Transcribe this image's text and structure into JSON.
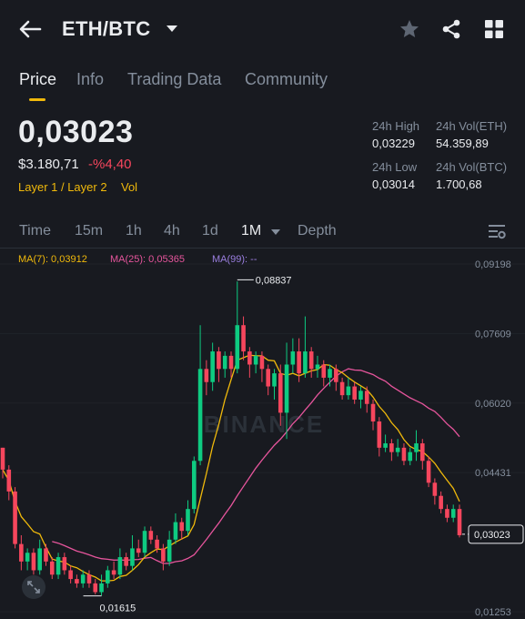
{
  "header": {
    "pair": "ETH/BTC",
    "icons": {
      "back": "arrow-left-icon",
      "favorite": "star-icon",
      "share": "share-icon",
      "more": "grid-icon"
    }
  },
  "tabs": [
    {
      "label": "Price",
      "active": true
    },
    {
      "label": "Info",
      "active": false
    },
    {
      "label": "Trading Data",
      "active": false
    },
    {
      "label": "Community",
      "active": false
    }
  ],
  "ticker": {
    "last_price": "0,03023",
    "usd_price": "$3.180,71",
    "change": "-%4,40",
    "tags": [
      "Layer 1 / Layer 2",
      "Vol"
    ],
    "high_label": "24h High",
    "high": "0,03229",
    "low_label": "24h Low",
    "low": "0,03014",
    "vol_eth_label": "24h Vol(ETH)",
    "vol_eth": "54.359,89",
    "vol_btc_label": "24h Vol(BTC)",
    "vol_btc": "1.700,68"
  },
  "timeframes": {
    "items": [
      "Time",
      "15m",
      "1h",
      "4h",
      "1d",
      "1M",
      "Depth"
    ],
    "active": "1M"
  },
  "indicators": {
    "ma7": "MA(7): 0,03912",
    "ma25": "MA(25): 0,05365",
    "ma99": "MA(99): --"
  },
  "colors": {
    "background": "#181a20",
    "up": "#0ecb81",
    "down": "#f6465d",
    "accent": "#f0b90b",
    "ma7": "#f0b90b",
    "ma25": "#e6559c",
    "ma99": "#9b7fe0"
  },
  "chart_data": {
    "type": "candlestick",
    "watermark": "BINANCE",
    "y_ticks": [
      "0,09198",
      "0,07609",
      "0,06020",
      "0,04431",
      "0,03023",
      "0,01253"
    ],
    "ylim": [
      0.01253,
      0.09198
    ],
    "high_marker": {
      "value": 0.08837,
      "label": "0,08837"
    },
    "low_marker": {
      "value": 0.01615,
      "label": "0,01615"
    },
    "last_price_marker": {
      "value": 0.03023,
      "label": "0,03023"
    },
    "candles": [
      [
        0.05,
        0.045,
        0.05,
        0.043
      ],
      [
        0.045,
        0.04,
        0.046,
        0.038
      ],
      [
        0.04,
        0.028,
        0.041,
        0.027
      ],
      [
        0.028,
        0.024,
        0.03,
        0.022
      ],
      [
        0.024,
        0.026,
        0.027,
        0.022
      ],
      [
        0.026,
        0.022,
        0.027,
        0.021
      ],
      [
        0.022,
        0.027,
        0.029,
        0.021
      ],
      [
        0.027,
        0.024,
        0.028,
        0.023
      ],
      [
        0.024,
        0.021,
        0.025,
        0.02
      ],
      [
        0.021,
        0.025,
        0.026,
        0.02
      ],
      [
        0.025,
        0.022,
        0.026,
        0.021
      ],
      [
        0.022,
        0.02,
        0.023,
        0.019
      ],
      [
        0.02,
        0.019,
        0.021,
        0.018
      ],
      [
        0.019,
        0.021,
        0.022,
        0.018
      ],
      [
        0.021,
        0.019,
        0.022,
        0.018
      ],
      [
        0.019,
        0.017,
        0.02,
        0.0165
      ],
      [
        0.017,
        0.019,
        0.021,
        0.0162
      ],
      [
        0.019,
        0.022,
        0.023,
        0.018
      ],
      [
        0.022,
        0.021,
        0.024,
        0.02
      ],
      [
        0.021,
        0.025,
        0.027,
        0.02
      ],
      [
        0.025,
        0.023,
        0.026,
        0.022
      ],
      [
        0.023,
        0.027,
        0.03,
        0.022
      ],
      [
        0.027,
        0.026,
        0.029,
        0.025
      ],
      [
        0.026,
        0.031,
        0.032,
        0.025
      ],
      [
        0.031,
        0.029,
        0.032,
        0.028
      ],
      [
        0.029,
        0.027,
        0.03,
        0.026
      ],
      [
        0.027,
        0.024,
        0.028,
        0.022
      ],
      [
        0.024,
        0.029,
        0.031,
        0.023
      ],
      [
        0.029,
        0.033,
        0.035,
        0.028
      ],
      [
        0.033,
        0.031,
        0.034,
        0.029
      ],
      [
        0.031,
        0.036,
        0.038,
        0.03
      ],
      [
        0.036,
        0.047,
        0.048,
        0.035
      ],
      [
        0.047,
        0.068,
        0.078,
        0.046
      ],
      [
        0.068,
        0.065,
        0.07,
        0.062
      ],
      [
        0.065,
        0.072,
        0.074,
        0.063
      ],
      [
        0.072,
        0.068,
        0.073,
        0.065
      ],
      [
        0.068,
        0.071,
        0.072,
        0.066
      ],
      [
        0.071,
        0.068,
        0.072,
        0.066
      ],
      [
        0.068,
        0.078,
        0.088,
        0.067
      ],
      [
        0.078,
        0.072,
        0.08,
        0.07
      ],
      [
        0.072,
        0.069,
        0.073,
        0.066
      ],
      [
        0.069,
        0.071,
        0.072,
        0.067
      ],
      [
        0.071,
        0.068,
        0.072,
        0.065
      ],
      [
        0.068,
        0.064,
        0.069,
        0.062
      ],
      [
        0.064,
        0.067,
        0.068,
        0.061
      ],
      [
        0.067,
        0.058,
        0.069,
        0.055
      ],
      [
        0.058,
        0.069,
        0.074,
        0.052
      ],
      [
        0.069,
        0.072,
        0.075,
        0.067
      ],
      [
        0.072,
        0.067,
        0.075,
        0.065
      ],
      [
        0.067,
        0.072,
        0.08,
        0.066
      ],
      [
        0.072,
        0.068,
        0.073,
        0.066
      ],
      [
        0.068,
        0.069,
        0.071,
        0.066
      ],
      [
        0.069,
        0.066,
        0.07,
        0.064
      ],
      [
        0.066,
        0.068,
        0.069,
        0.064
      ],
      [
        0.068,
        0.065,
        0.069,
        0.063
      ],
      [
        0.065,
        0.062,
        0.066,
        0.061
      ],
      [
        0.062,
        0.064,
        0.066,
        0.061
      ],
      [
        0.064,
        0.061,
        0.065,
        0.06
      ],
      [
        0.061,
        0.063,
        0.064,
        0.059
      ],
      [
        0.063,
        0.06,
        0.064,
        0.058
      ],
      [
        0.06,
        0.056,
        0.061,
        0.054
      ],
      [
        0.056,
        0.05,
        0.057,
        0.048
      ],
      [
        0.05,
        0.051,
        0.053,
        0.049
      ],
      [
        0.051,
        0.049,
        0.052,
        0.047
      ],
      [
        0.049,
        0.05,
        0.052,
        0.048
      ],
      [
        0.05,
        0.047,
        0.051,
        0.046
      ],
      [
        0.047,
        0.049,
        0.05,
        0.046
      ],
      [
        0.049,
        0.051,
        0.054,
        0.047
      ],
      [
        0.051,
        0.047,
        0.052,
        0.045
      ],
      [
        0.047,
        0.042,
        0.048,
        0.041
      ],
      [
        0.042,
        0.039,
        0.043,
        0.037
      ],
      [
        0.039,
        0.036,
        0.04,
        0.035
      ],
      [
        0.036,
        0.034,
        0.037,
        0.033
      ],
      [
        0.034,
        0.036,
        0.037,
        0.033
      ],
      [
        0.036,
        0.03,
        0.037,
        0.0295
      ]
    ]
  }
}
